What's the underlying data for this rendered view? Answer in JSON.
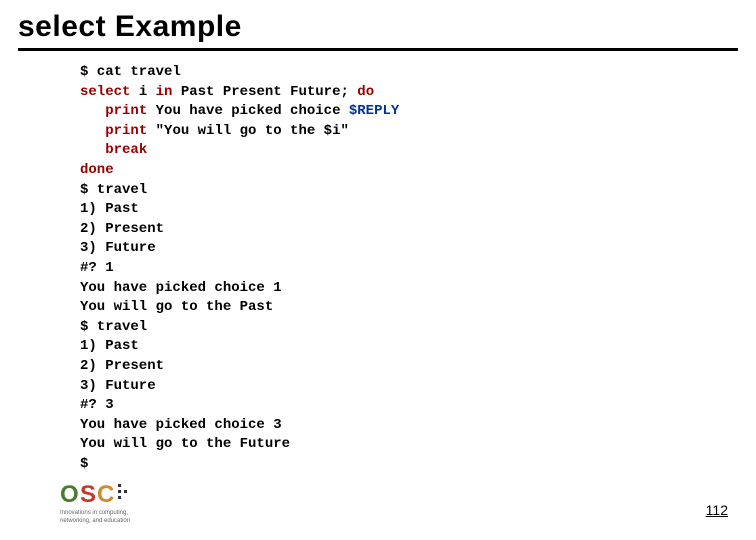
{
  "title": "select Example",
  "code": {
    "lines": [
      {
        "kind": "plain",
        "text": "$ cat travel"
      },
      {
        "kind": "script",
        "parts": [
          {
            "t": "select",
            "c": "kw"
          },
          {
            "t": " i "
          },
          {
            "t": "in",
            "c": "kw"
          },
          {
            "t": " Past Present Future; "
          },
          {
            "t": "do",
            "c": "kw"
          }
        ]
      },
      {
        "kind": "script",
        "indent": "   ",
        "parts": [
          {
            "t": "print",
            "c": "kw"
          },
          {
            "t": " You have picked choice "
          },
          {
            "t": "$REPLY",
            "c": "var"
          }
        ]
      },
      {
        "kind": "script",
        "indent": "   ",
        "parts": [
          {
            "t": "print",
            "c": "kw"
          },
          {
            "t": " \"You will go to the $i\""
          }
        ]
      },
      {
        "kind": "script",
        "indent": "   ",
        "parts": [
          {
            "t": "break",
            "c": "kw"
          }
        ]
      },
      {
        "kind": "script",
        "parts": [
          {
            "t": "done",
            "c": "kw"
          }
        ]
      },
      {
        "kind": "plain",
        "text": "$ travel"
      },
      {
        "kind": "plain",
        "text": "1) Past"
      },
      {
        "kind": "plain",
        "text": "2) Present"
      },
      {
        "kind": "plain",
        "text": "3) Future"
      },
      {
        "kind": "plain",
        "text": "#? 1"
      },
      {
        "kind": "plain",
        "text": "You have picked choice 1"
      },
      {
        "kind": "plain",
        "text": "You will go to the Past"
      },
      {
        "kind": "plain",
        "text": "$ travel"
      },
      {
        "kind": "plain",
        "text": "1) Past"
      },
      {
        "kind": "plain",
        "text": "2) Present"
      },
      {
        "kind": "plain",
        "text": "3) Future"
      },
      {
        "kind": "plain",
        "text": "#? 3"
      },
      {
        "kind": "plain",
        "text": "You have picked choice 3"
      },
      {
        "kind": "plain",
        "text": "You will go to the Future"
      },
      {
        "kind": "plain",
        "text": "$"
      }
    ]
  },
  "page_number": "112",
  "logo": {
    "o_color": "#4a7a2f",
    "s_color": "#c43a2a",
    "c_color": "#d18a2a",
    "tagline1": "Innovations in computing,",
    "tagline2": "networking, and education"
  }
}
